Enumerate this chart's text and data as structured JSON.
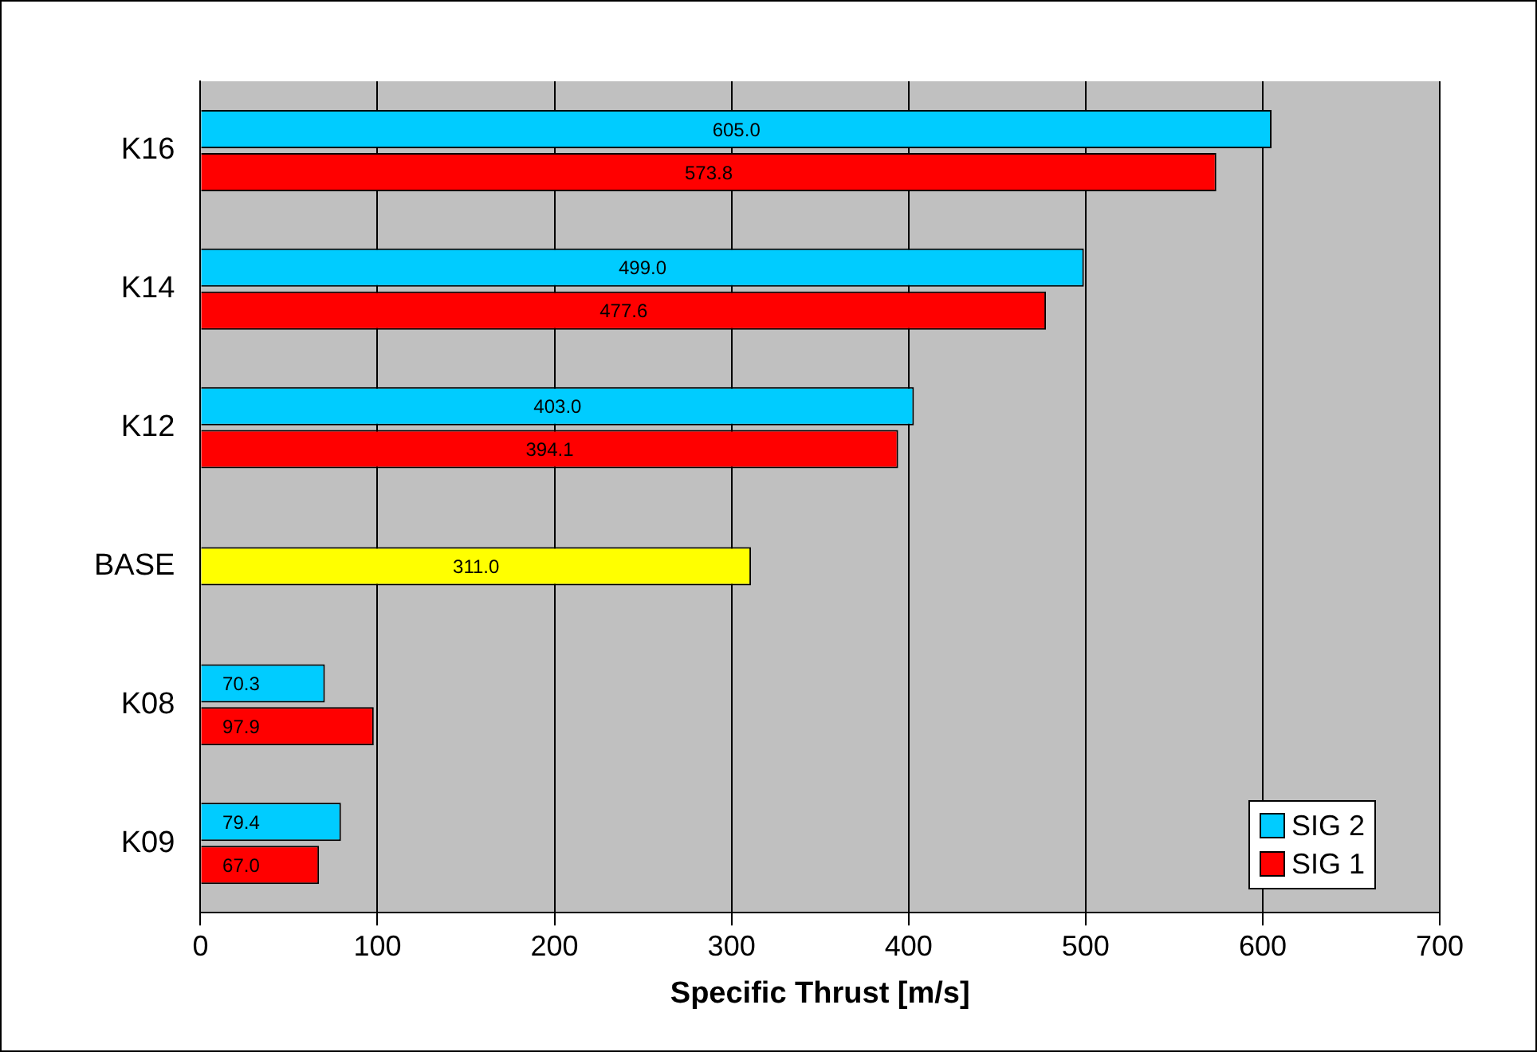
{
  "chart_data": {
    "type": "bar",
    "orientation": "horizontal",
    "xlabel": "Specific Thrust [m/s]",
    "categories": [
      "K16",
      "K14",
      "K12",
      "BASE",
      "K08",
      "K09"
    ],
    "series": [
      {
        "name": "SIG 2",
        "color": "#00ccff",
        "values": [
          605.0,
          499.0,
          403.0,
          null,
          70.3,
          79.4
        ],
        "value_labels": [
          "605.0",
          "499.0",
          "403.0",
          null,
          "70.3",
          "79.4"
        ]
      },
      {
        "name": "SIG 1",
        "color": "#ff0000",
        "values": [
          573.8,
          477.6,
          394.1,
          null,
          97.9,
          67.0
        ],
        "value_labels": [
          "573.8",
          "477.6",
          "394.1",
          null,
          "97.9",
          "67.0"
        ]
      },
      {
        "color": "#ffff00",
        "values": [
          null,
          null,
          null,
          311.0,
          null,
          null
        ],
        "value_labels": [
          null,
          null,
          null,
          "311.0",
          null,
          null
        ]
      }
    ],
    "xlim": [
      0,
      700
    ],
    "xticks": [
      0,
      100,
      200,
      300,
      400,
      500,
      600,
      700
    ],
    "grid": "x",
    "legend": "bottom right"
  }
}
